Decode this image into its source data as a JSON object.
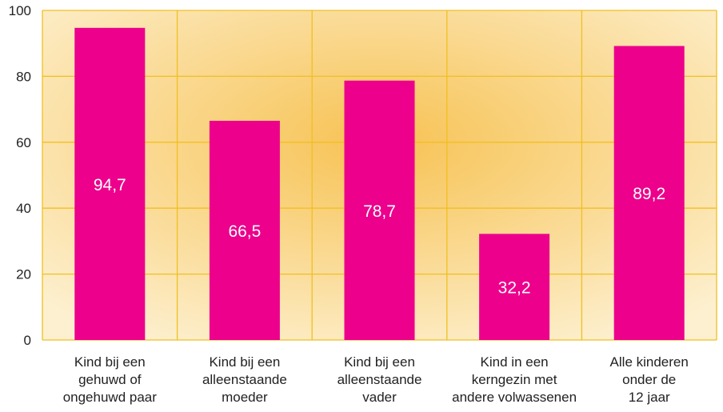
{
  "chart_data": {
    "type": "bar",
    "title": "",
    "xlabel": "",
    "ylabel": "",
    "ylim": [
      0,
      100
    ],
    "yticks": [
      0,
      20,
      40,
      60,
      80,
      100
    ],
    "grid": true,
    "categories": [
      [
        "Kind bij een",
        "gehuwd of",
        "ongehuwd paar"
      ],
      [
        "Kind bij een",
        "alleenstaande",
        "moeder"
      ],
      [
        "Kind bij een",
        "alleenstaande",
        "vader"
      ],
      [
        "Kind in een",
        "kerngezin met",
        "andere volwassenen"
      ],
      [
        "Alle kinderen",
        "onder de",
        "12 jaar"
      ]
    ],
    "values": [
      94.7,
      66.5,
      78.7,
      32.2,
      89.2
    ],
    "value_labels": [
      "94,7",
      "66,5",
      "78,7",
      "32,2",
      "89,2"
    ],
    "colors": {
      "bar": "#EC008C",
      "grid": "#F0C020",
      "background_center": "#F7C253",
      "background_edge": "#FDF0D0",
      "axis_text": "#222222",
      "data_label": "#FFFFFF"
    }
  }
}
